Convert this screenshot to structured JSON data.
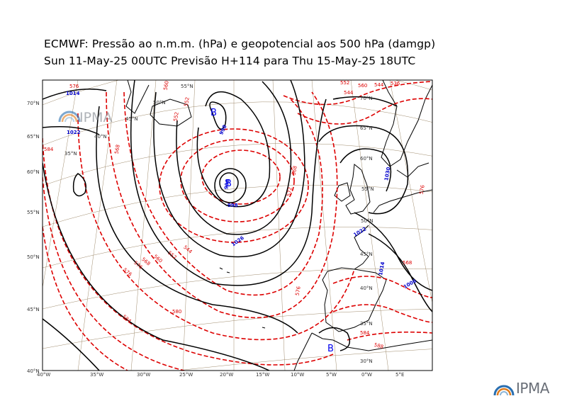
{
  "header": {
    "title": "ECMWF:  Pressão ao n.m.m. (hPa) e geopotencial aos 500 hPa (damgp)",
    "subtitle": "Sun 11-May-25 00UTC Previsão H+114 para Thu 15-May-25 18UTC"
  },
  "axes": {
    "lon_labels": [
      "40°W",
      "35°W",
      "30°W",
      "25°W",
      "20°W",
      "15°W",
      "10°W",
      "5°W",
      "0°W",
      "5°E"
    ],
    "lat_labels": [
      "70°N",
      "65°N",
      "60°N",
      "55°N",
      "50°N",
      "45°N",
      "40°N"
    ]
  },
  "graticule_labels": [
    "55°N",
    "50°N",
    "45°N",
    "40°N",
    "35°N",
    "70°N",
    "65°N",
    "60°N",
    "55°N",
    "50°N",
    "45°N",
    "40°N",
    "35°N",
    "30°N"
  ],
  "isobar_labels": [
    "1014",
    "1022",
    "998",
    "998",
    "998",
    "1030",
    "1022",
    "1014",
    "1006",
    "1026"
  ],
  "geopotential_labels": [
    "576",
    "584",
    "560",
    "552",
    "568",
    "576",
    "568",
    "560",
    "552",
    "544",
    "576",
    "580",
    "584",
    "568",
    "576",
    "584",
    "588",
    "572",
    "568",
    "552",
    "560",
    "544",
    "536",
    "544",
    "552",
    "576"
  ],
  "low_marks": [
    "B",
    "B",
    "B"
  ],
  "watermark": {
    "text": "IPMA"
  },
  "logo": {
    "text": "IPMA"
  },
  "colors": {
    "isobar": "#000000",
    "geopotential": "#dd0000",
    "low_center": "#0000ee",
    "graticule": "#a08c6e"
  }
}
